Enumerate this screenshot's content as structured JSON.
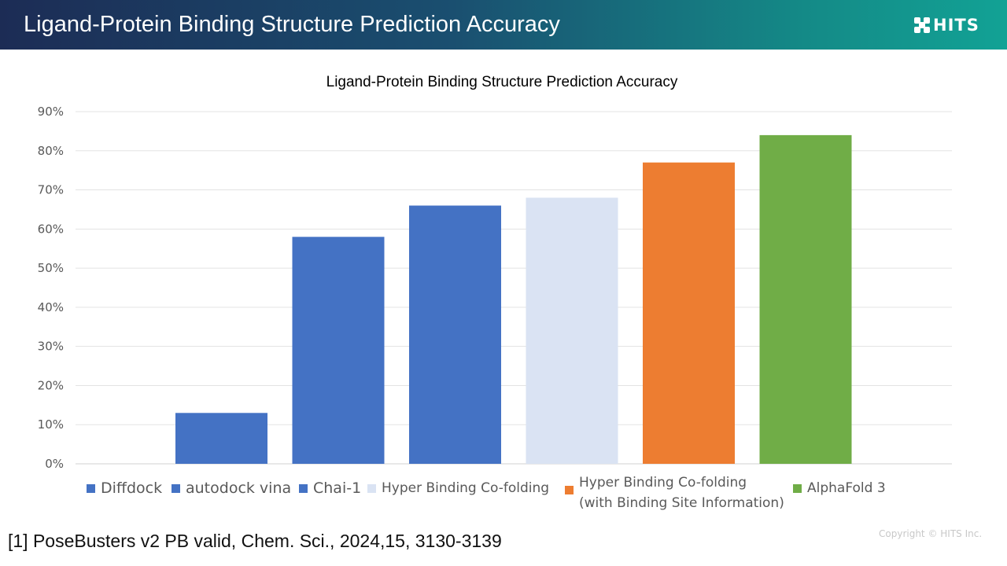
{
  "header": {
    "title": "Ligand-Protein Binding Structure Prediction Accuracy",
    "logo_text": "HITS"
  },
  "chart_data": {
    "type": "bar",
    "title": "Ligand-Protein Binding Structure Prediction Accuracy",
    "xlabel": "",
    "ylabel": "",
    "ylim": [
      0,
      90
    ],
    "yticks": [
      "0%",
      "10%",
      "20%",
      "30%",
      "40%",
      "50%",
      "60%",
      "70%",
      "80%",
      "90%"
    ],
    "grid": true,
    "legend_position": "bottom",
    "series": [
      {
        "name": "Diffdock",
        "values": [
          0
        ],
        "color": "#4472c4"
      },
      {
        "name": "autodock vina",
        "values": [
          13
        ],
        "color": "#4472c4"
      },
      {
        "name": "Chai-1",
        "values": [
          58
        ],
        "color": "#4472c4"
      },
      {
        "name": "Hyper Binding Co-folding",
        "values": [
          66
        ],
        "color": "#4472c4"
      },
      {
        "name": "Hyper Binding Co-folding\n(with Binding Site Information)",
        "values": [
          68
        ],
        "color": "#dae3f3"
      },
      {
        "name": "AlphaFold 3",
        "values": [
          77
        ],
        "color": "#ed7d31"
      },
      {
        "name": "",
        "values": [
          84
        ],
        "color": "#70ad47"
      }
    ],
    "legend": [
      {
        "label": "Diffdock",
        "color": "#4472c4"
      },
      {
        "label": "autodock vina",
        "color": "#4472c4"
      },
      {
        "label": "Chai-1",
        "color": "#4472c4"
      },
      {
        "label": "Hyper Binding Co-folding",
        "color": "#dae3f3"
      },
      {
        "label": "Hyper Binding Co-folding\n(with Binding Site Information)",
        "color": "#ed7d31"
      },
      {
        "label": "AlphaFold 3",
        "color": "#70ad47"
      }
    ],
    "bar_values": [
      13,
      58,
      66,
      68,
      77,
      84
    ],
    "bar_colors": [
      "#4472c4",
      "#4472c4",
      "#4472c4",
      "#dae3f3",
      "#ed7d31",
      "#70ad47"
    ]
  },
  "footnote": "[1] PoseBusters v2 PB valid, Chem. Sci., 2024,15, 3130-3139",
  "copyright": "Copyright © HITS Inc."
}
